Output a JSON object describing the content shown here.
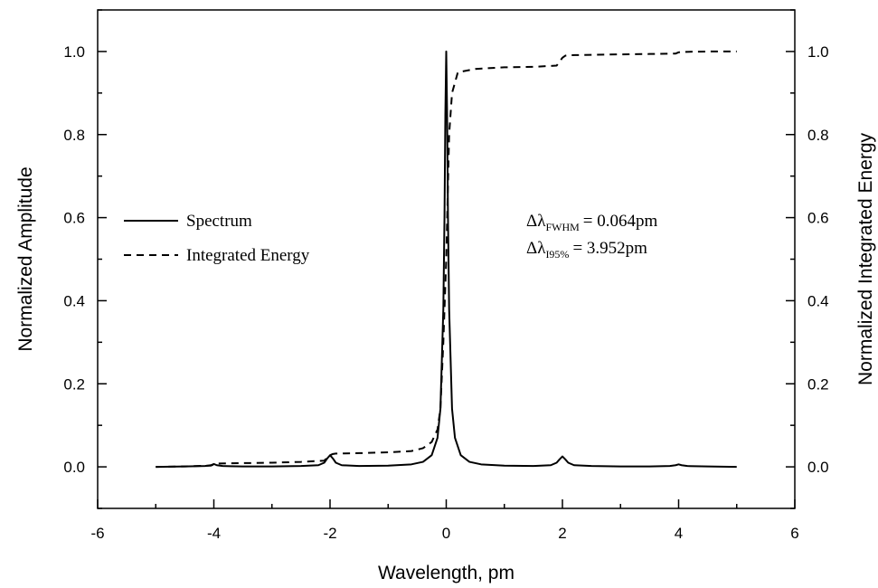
{
  "chart_data": {
    "type": "line",
    "title": "",
    "xlabel": "Wavelength, pm",
    "ylabel": "Normalized Amplitude",
    "y2label": "Normalized Integrated Energy",
    "xlim": [
      -6,
      6
    ],
    "ylim": [
      -0.1,
      1.1
    ],
    "y2lim": [
      -0.1,
      1.1
    ],
    "xticks": [
      "-6",
      "-4",
      "-2",
      "0",
      "2",
      "4",
      "6"
    ],
    "yticks": [
      "0.0",
      "0.2",
      "0.4",
      "0.6",
      "0.8",
      "1.0"
    ],
    "y2ticks": [
      "0.0",
      "0.2",
      "0.4",
      "0.6",
      "0.8",
      "1.0"
    ],
    "grid": false,
    "legend_position": "middle-left",
    "series": [
      {
        "name": "Spectrum",
        "style": "solid",
        "axis": "left",
        "x": [
          -5,
          -4.5,
          -4.15,
          -4.05,
          -4,
          -3.95,
          -3.85,
          -3.5,
          -3,
          -2.5,
          -2.2,
          -2.1,
          -2.05,
          -2,
          -1.95,
          -1.9,
          -1.8,
          -1.5,
          -1,
          -0.6,
          -0.4,
          -0.25,
          -0.15,
          -0.1,
          -0.05,
          -0.03,
          -0.015,
          0,
          0.015,
          0.03,
          0.05,
          0.1,
          0.15,
          0.25,
          0.4,
          0.6,
          1,
          1.5,
          1.8,
          1.9,
          1.95,
          2,
          2.05,
          2.1,
          2.2,
          2.5,
          3,
          3.5,
          3.85,
          3.95,
          4,
          4.05,
          4.15,
          4.5,
          5
        ],
        "y": [
          0.0,
          0.001,
          0.002,
          0.004,
          0.007,
          0.004,
          0.002,
          0.001,
          0.001,
          0.002,
          0.004,
          0.01,
          0.02,
          0.028,
          0.02,
          0.01,
          0.004,
          0.002,
          0.003,
          0.006,
          0.012,
          0.028,
          0.07,
          0.14,
          0.38,
          0.6,
          0.85,
          1.0,
          0.85,
          0.6,
          0.38,
          0.14,
          0.07,
          0.028,
          0.012,
          0.006,
          0.003,
          0.002,
          0.004,
          0.01,
          0.018,
          0.025,
          0.018,
          0.01,
          0.004,
          0.002,
          0.001,
          0.001,
          0.002,
          0.004,
          0.006,
          0.004,
          0.002,
          0.001,
          0.0
        ]
      },
      {
        "name": "Integrated Energy",
        "style": "dashed",
        "axis": "right",
        "x": [
          -5,
          -4.5,
          -4.05,
          -4,
          -3.95,
          -3.5,
          -3,
          -2.5,
          -2.1,
          -2.05,
          -2,
          -1.95,
          -1.9,
          -1.5,
          -1,
          -0.6,
          -0.4,
          -0.25,
          -0.15,
          -0.1,
          -0.05,
          -0.02,
          0,
          0.02,
          0.05,
          0.1,
          0.2,
          0.5,
          1,
          1.5,
          1.9,
          1.95,
          2,
          2.05,
          2.1,
          2.5,
          3,
          3.5,
          3.95,
          4,
          4.05,
          4.5,
          5
        ],
        "y": [
          0.0,
          0.001,
          0.003,
          0.006,
          0.008,
          0.009,
          0.01,
          0.012,
          0.015,
          0.022,
          0.028,
          0.031,
          0.032,
          0.033,
          0.035,
          0.038,
          0.045,
          0.06,
          0.09,
          0.14,
          0.3,
          0.42,
          0.5,
          0.62,
          0.8,
          0.9,
          0.95,
          0.958,
          0.962,
          0.963,
          0.966,
          0.975,
          0.985,
          0.99,
          0.991,
          0.992,
          0.993,
          0.994,
          0.995,
          0.998,
          0.999,
          1.0,
          1.0
        ]
      }
    ],
    "annotations": [
      {
        "prefix": "Δλ",
        "subscript": "FWHM",
        "value_text": "= 0.064pm"
      },
      {
        "prefix": "Δλ",
        "subscript": "I95%",
        "value_text": "= 3.952pm"
      }
    ]
  }
}
